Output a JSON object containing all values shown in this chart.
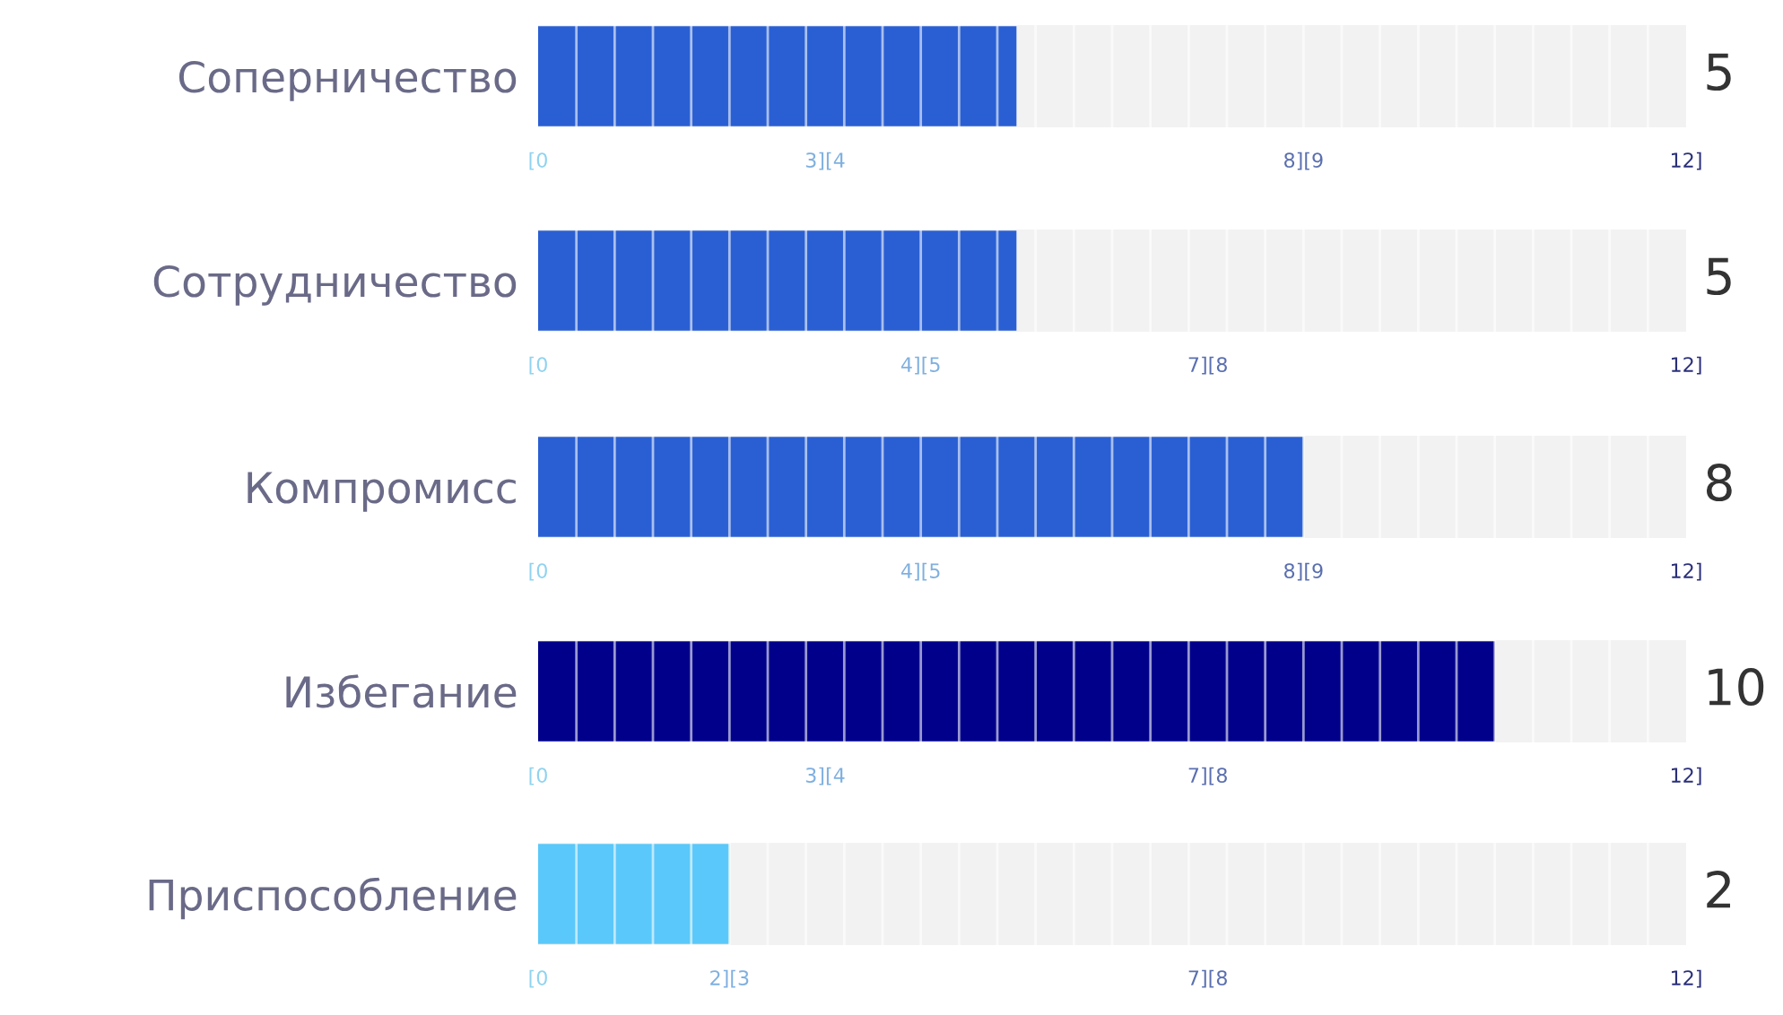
{
  "chart_data": [
    {
      "type": "bar",
      "orientation": "horizontal",
      "categories": [
        "Соперничество"
      ],
      "values": [
        5
      ],
      "color": "#2a5fd3",
      "xlim": [
        0,
        12
      ],
      "xticks": [
        {
          "value": 0,
          "label": "[0"
        },
        {
          "value": 3,
          "label": "3][4"
        },
        {
          "value": 8,
          "label": "8][9"
        },
        {
          "value": 12,
          "label": "12]"
        }
      ],
      "annotations": [
        "5"
      ]
    },
    {
      "type": "bar",
      "orientation": "horizontal",
      "categories": [
        "Сотрудничество"
      ],
      "values": [
        5
      ],
      "color": "#2a5fd3",
      "xlim": [
        0,
        12
      ],
      "xticks": [
        {
          "value": 0,
          "label": "[0"
        },
        {
          "value": 4,
          "label": "4][5"
        },
        {
          "value": 7,
          "label": "7][8"
        },
        {
          "value": 12,
          "label": "12]"
        }
      ],
      "annotations": [
        "5"
      ]
    },
    {
      "type": "bar",
      "orientation": "horizontal",
      "categories": [
        "Компромисс"
      ],
      "values": [
        8
      ],
      "color": "#2a5fd3",
      "xlim": [
        0,
        12
      ],
      "xticks": [
        {
          "value": 0,
          "label": "[0"
        },
        {
          "value": 4,
          "label": "4][5"
        },
        {
          "value": 8,
          "label": "8][9"
        },
        {
          "value": 12,
          "label": "12]"
        }
      ],
      "annotations": [
        "8"
      ]
    },
    {
      "type": "bar",
      "orientation": "horizontal",
      "categories": [
        "Избегание"
      ],
      "values": [
        10
      ],
      "color": "#00008b",
      "xlim": [
        0,
        12
      ],
      "xticks": [
        {
          "value": 0,
          "label": "[0"
        },
        {
          "value": 3,
          "label": "3][4"
        },
        {
          "value": 7,
          "label": "7][8"
        },
        {
          "value": 12,
          "label": "12]"
        }
      ],
      "annotations": [
        "10"
      ]
    },
    {
      "type": "bar",
      "orientation": "horizontal",
      "categories": [
        "Приспособление"
      ],
      "values": [
        2
      ],
      "color": "#5ac8fa",
      "xlim": [
        0,
        12
      ],
      "xticks": [
        {
          "value": 0,
          "label": "[0"
        },
        {
          "value": 2,
          "label": "2][3"
        },
        {
          "value": 7,
          "label": "7][8"
        },
        {
          "value": 12,
          "label": "12]"
        }
      ],
      "annotations": [
        "2"
      ]
    }
  ]
}
